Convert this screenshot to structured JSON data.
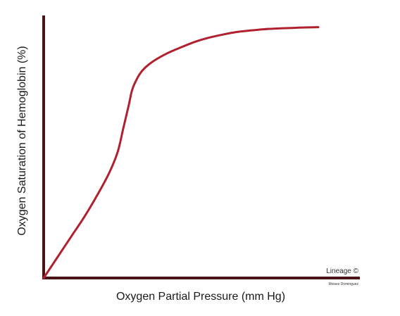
{
  "chart_data": {
    "type": "line",
    "title": "",
    "xlabel": "Oxygen Partial Pressure (mm Hg)",
    "ylabel": "Oxygen Saturation of Hemoglobin (%)",
    "xlim": [
      0,
      100
    ],
    "ylim": [
      0,
      100
    ],
    "grid": false,
    "show_ticks": false,
    "series": [
      {
        "color": "#b0202e",
        "x": [
          0,
          5,
          10,
          15,
          20,
          24,
          27,
          29,
          31,
          32,
          33,
          35,
          37,
          40,
          45,
          50,
          55,
          60,
          65,
          70,
          75,
          80,
          85,
          90,
          95,
          100
        ],
        "y": [
          0,
          8,
          16,
          24,
          33,
          41,
          49,
          58,
          67,
          72,
          75,
          79,
          81.5,
          84,
          87,
          89.3,
          91.4,
          93,
          94.2,
          95.2,
          95.8,
          96.3,
          96.6,
          96.8,
          97,
          97.1
        ]
      }
    ]
  },
  "credit": {
    "line1": "Lineage ©",
    "line2": "Moises Dominguez"
  },
  "colors": {
    "axis": "#4a1416",
    "curve": "#b0202e"
  }
}
